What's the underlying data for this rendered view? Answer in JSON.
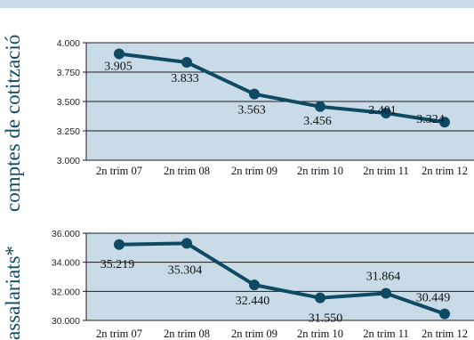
{
  "colors": {
    "band": "#c9dbe6",
    "plot_bg": "#c9dbe6",
    "line": "#0e4a64",
    "label_text": "#0e4a64",
    "grid": "#1d1d1d"
  },
  "chart_data": [
    {
      "type": "line",
      "ylabel": "comptes de cotització",
      "categories": [
        "2n trim 07",
        "2n trim 08",
        "2n trim 09",
        "2n trim 10",
        "2n trim 11",
        "2n trim 12"
      ],
      "series": [
        {
          "values": [
            3905,
            3833,
            3563,
            3456,
            3401,
            3324
          ],
          "labels": [
            "3.905",
            "3.833",
            "3.563",
            "3.456",
            "3.401",
            "3.324"
          ]
        }
      ],
      "ylim": [
        3000,
        4000
      ],
      "yticks": [
        3000,
        3250,
        3500,
        3750,
        4000
      ],
      "ytick_labels": [
        "3.000",
        "3.250",
        "3.500",
        "3.750",
        "4.000"
      ],
      "grid": true
    },
    {
      "type": "line",
      "ylabel": "assalariats*",
      "categories": [
        "2n trim 07",
        "2n trim 08",
        "2n trim 09",
        "2n trim 10",
        "2n trim 11",
        "2n trim 12"
      ],
      "series": [
        {
          "values": [
            35219,
            35304,
            32440,
            31550,
            31864,
            30449
          ],
          "labels": [
            "35.219",
            "35.304",
            "32.440",
            "31.550",
            "31.864",
            "30.449"
          ]
        }
      ],
      "ylim": [
        30000,
        36000
      ],
      "yticks": [
        30000,
        32000,
        34000,
        36000
      ],
      "ytick_labels": [
        "30.000",
        "32.000",
        "34.000",
        "36.000"
      ],
      "grid": true
    }
  ]
}
